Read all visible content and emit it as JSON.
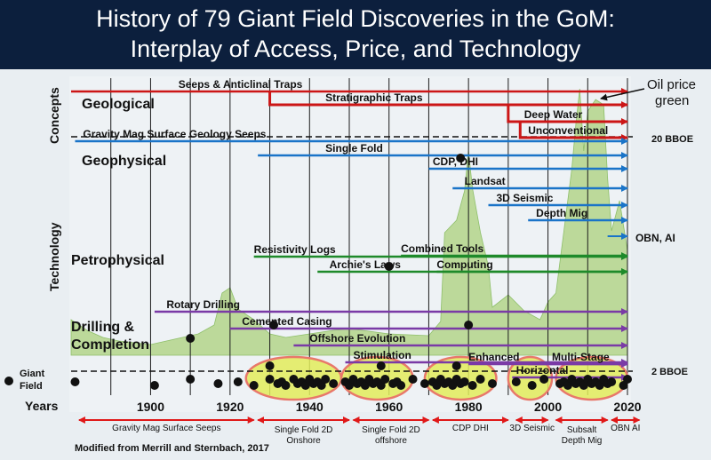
{
  "title_line1": "History of 79 Giant Field Discoveries in the GoM:",
  "title_line2": "Interplay of Access, Price, and Technology",
  "axis": {
    "years_label": "Years",
    "concepts_label": "Concepts",
    "technology_label": "Technology",
    "giant_field_label_1": "Giant",
    "giant_field_label_2": "Field",
    "xlim": [
      1880,
      2024
    ],
    "ticks": [
      1900,
      1920,
      1940,
      1960,
      1980,
      2000,
      2020
    ]
  },
  "oil_price_note_1": "Oil price",
  "oil_price_note_2": "green",
  "threshold_20": "20 BBOE",
  "threshold_2": "2 BBOE",
  "source": "Modified from Merrill and Sternbach, 2017",
  "categories": [
    {
      "line1": "Geological",
      "line2": ""
    },
    {
      "line1": "Geophysical",
      "line2": ""
    },
    {
      "line1": "Petrophysical",
      "line2": ""
    },
    {
      "line1": "Drilling &",
      "line2": "Completion"
    }
  ],
  "colors": {
    "title_bg": "#0c1f3d",
    "geological": "#cc1616",
    "geophysical": "#1a74c8",
    "petrophysical": "#1e8a2a",
    "drilling": "#7a3aa6",
    "oil_price_fill": "#bcd99a",
    "cluster_fill": "#e2ec5a",
    "cluster_stroke": "#e8786a",
    "access_arrow": "#e01818"
  },
  "chart_data": {
    "type": "timeline",
    "technology_lines": [
      {
        "label": "Seeps & Anticlinal Traps",
        "group": "geological",
        "start": 1880,
        "end": 2020
      },
      {
        "label": "Stratigraphic Traps",
        "group": "geological",
        "start": 1930,
        "end": 2020
      },
      {
        "label": "Deep Water",
        "group": "geological",
        "start": 1990,
        "end": 2020
      },
      {
        "label": "Unconventional",
        "group": "geological",
        "start": 1993,
        "end": 2020
      },
      {
        "label": "Gravity Mag Surface Geology Seeps",
        "group": "geophysical",
        "start": 1881,
        "end": 2020
      },
      {
        "label": "Single Fold",
        "group": "geophysical",
        "start": 1927,
        "end": 2020
      },
      {
        "label": "CDP, DHI",
        "group": "geophysical",
        "start": 1970,
        "end": 2020
      },
      {
        "label": "Landsat",
        "group": "geophysical",
        "start": 1976,
        "end": 2020
      },
      {
        "label": "3D Seismic",
        "group": "geophysical",
        "start": 1985,
        "end": 2020
      },
      {
        "label": "Depth Mig",
        "group": "geophysical",
        "start": 1995,
        "end": 2020
      },
      {
        "label": "OBN, AI",
        "group": "geophysical",
        "start": 2015,
        "end": 2020
      },
      {
        "label": "Resistivity Logs",
        "group": "petrophysical",
        "start": 1926,
        "end": 2020
      },
      {
        "label": "Archie's Laws",
        "group": "petrophysical",
        "start": 1942,
        "end": 2020
      },
      {
        "label": "Combined Tools",
        "group": "petrophysical",
        "start": 1963,
        "end": 2020
      },
      {
        "label": "Computing",
        "group": "petrophysical",
        "start": 1972,
        "end": 2020
      },
      {
        "label": "Rotary Drilling",
        "group": "drilling",
        "start": 1901,
        "end": 2020
      },
      {
        "label": "Cemented Casing",
        "group": "drilling",
        "start": 1920,
        "end": 2020
      },
      {
        "label": "Offshore Evolution",
        "group": "drilling",
        "start": 1936,
        "end": 2020
      },
      {
        "label": "Stimulation",
        "group": "drilling",
        "start": 1949,
        "end": 2020
      },
      {
        "label": "Enhanced",
        "group": "drilling",
        "start": 1980,
        "end": 2020
      },
      {
        "label": "Horizontal",
        "group": "drilling",
        "start": 1991,
        "end": 2020
      },
      {
        "label": "Multi-Stage",
        "group": "drilling",
        "start": 1995,
        "end": 2020
      }
    ],
    "access_periods": [
      {
        "label": "Gravity Mag Surface Seeps",
        "start": 1882,
        "end": 1926
      },
      {
        "label": "Single Fold 2D",
        "label2": "Onshore",
        "start": 1927,
        "end": 1950
      },
      {
        "label": "Single Fold 2D",
        "label2": "offshore",
        "start": 1951,
        "end": 1970
      },
      {
        "label": "CDP DHI",
        "label2": "",
        "start": 1971,
        "end": 1990
      },
      {
        "label": "3D Seismic",
        "label2": "",
        "start": 1992,
        "end": 2000
      },
      {
        "label": "Subsalt",
        "label2": "Depth Mig",
        "start": 2002,
        "end": 2015
      },
      {
        "label": "OBN AI",
        "label2": "",
        "start": 2016,
        "end": 2023
      }
    ],
    "discovery_clusters": [
      {
        "start": 1924,
        "end": 1948
      },
      {
        "start": 1948,
        "end": 1966
      },
      {
        "start": 1969,
        "end": 1987
      },
      {
        "start": 1990,
        "end": 2001
      },
      {
        "start": 2002,
        "end": 2020
      }
    ],
    "discovery_years": [
      1881,
      1901,
      1910,
      1917,
      1922,
      1926,
      1930,
      1932,
      1933,
      1934,
      1936,
      1937,
      1938,
      1939,
      1940,
      1941,
      1942,
      1943,
      1944,
      1946,
      1949,
      1950,
      1951,
      1952,
      1953,
      1954,
      1955,
      1956,
      1957,
      1958,
      1959,
      1961,
      1962,
      1963,
      1966,
      1969,
      1971,
      1972,
      1973,
      1974,
      1975,
      1976,
      1977,
      1978,
      1979,
      1981,
      1983,
      1986,
      1992,
      1996,
      1999,
      2003,
      2004,
      2005,
      2006,
      2007,
      2008,
      2009,
      2010,
      2011,
      2012,
      2013,
      2014,
      2015,
      2016,
      2019,
      2020
    ],
    "outlier_discoveries": [
      {
        "year": 1930,
        "level": "1 BBOE"
      },
      {
        "year": 1958,
        "level": "1 BBOE"
      },
      {
        "year": 1977,
        "level": "1 BBOE"
      },
      {
        "year": 1910,
        "level": "3 BBOE"
      },
      {
        "year": 1931,
        "level": "5 BBOE"
      },
      {
        "year": 1980,
        "level": "5 BBOE"
      },
      {
        "year": 1960,
        "level": "12 BBOE"
      },
      {
        "year": 1978,
        "level": "20 BBOE"
      }
    ]
  }
}
